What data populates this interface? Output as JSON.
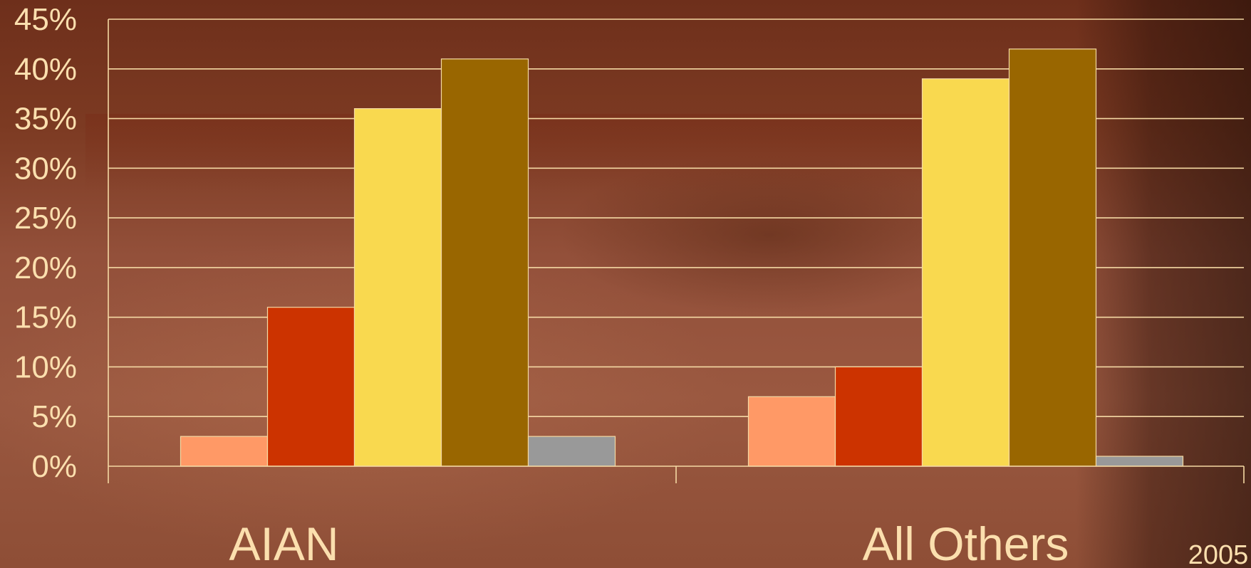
{
  "chart_data": {
    "type": "bar",
    "categories": [
      "AIAN",
      "All Others"
    ],
    "series": [
      {
        "values": [
          3,
          7
        ],
        "color": "#ff9966"
      },
      {
        "values": [
          16,
          10
        ],
        "color": "#cc3300"
      },
      {
        "values": [
          36,
          39
        ],
        "color": "#f9d94f"
      },
      {
        "values": [
          41,
          42
        ],
        "color": "#996600"
      },
      {
        "values": [
          3,
          1
        ],
        "color": "#999999"
      }
    ],
    "ylim": [
      0,
      45
    ],
    "yticks": [
      "0%",
      "5%",
      "10%",
      "15%",
      "20%",
      "25%",
      "30%",
      "35%",
      "40%",
      "45%"
    ],
    "grid": true,
    "title": "",
    "xlabel": "",
    "ylabel": ""
  },
  "annotation": "2005"
}
